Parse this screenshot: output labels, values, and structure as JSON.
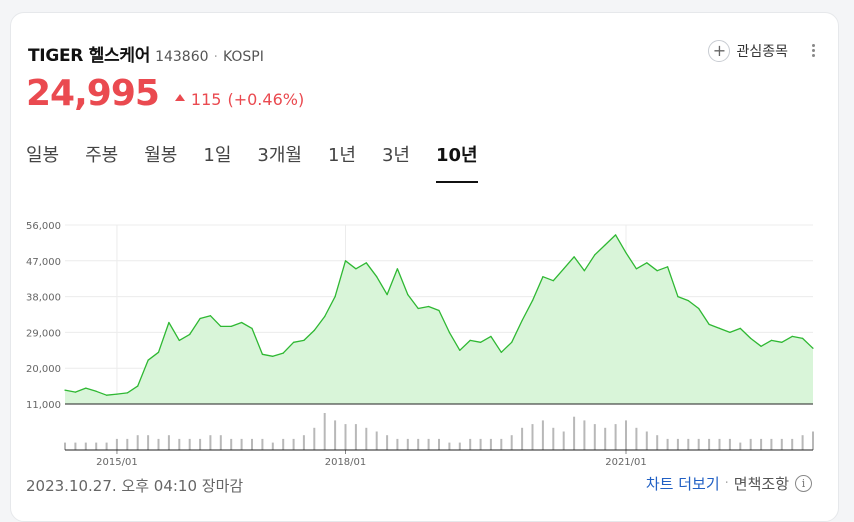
{
  "stock": {
    "name": "TIGER 헬스케어",
    "code": "143860",
    "separator": "·",
    "market": "KOSPI",
    "price": "24,995",
    "change": "115",
    "change_pct": "(+0.46%)",
    "watch_label": "관심종목",
    "colors": {
      "up": "#ea4a50",
      "line": "#2fb833",
      "area": "#d9f5d9"
    }
  },
  "tabs": [
    {
      "label": "일봉",
      "active": false
    },
    {
      "label": "주봉",
      "active": false
    },
    {
      "label": "월봉",
      "active": false
    },
    {
      "label": "1일",
      "active": false
    },
    {
      "label": "3개월",
      "active": false
    },
    {
      "label": "1년",
      "active": false
    },
    {
      "label": "3년",
      "active": false
    },
    {
      "label": "10년",
      "active": true
    }
  ],
  "footer": {
    "timestamp": "2023.10.27. 오후 04:10 장마감",
    "more_chart": "차트 더보기",
    "separator": "·",
    "disclaimer": "면책조항",
    "info_icon": "info-icon"
  },
  "chart_data": {
    "type": "area",
    "y_ticks": [
      56000,
      47000,
      38000,
      29000,
      20000,
      11000
    ],
    "y_tick_labels": [
      "56,000",
      "47,000",
      "38,000",
      "29,000",
      "20,000",
      "11,000"
    ],
    "ylim": [
      11000,
      56000
    ],
    "x_tick_labels": [
      "2015/01",
      "2018/01",
      "2021/01"
    ],
    "grid": true,
    "x": [
      "2013/11",
      "2014/01",
      "2014/04",
      "2014/07",
      "2014/10",
      "2015/01",
      "2015/03",
      "2015/05",
      "2015/07",
      "2015/08",
      "2015/09",
      "2015/10",
      "2015/12",
      "2016/02",
      "2016/04",
      "2016/05",
      "2016/07",
      "2016/09",
      "2016/11",
      "2017/01",
      "2017/03",
      "2017/05",
      "2017/07",
      "2017/09",
      "2017/10",
      "2017/11",
      "2017/12",
      "2018/01",
      "2018/02",
      "2018/04",
      "2018/05",
      "2018/06",
      "2018/07",
      "2018/08",
      "2018/09",
      "2018/10",
      "2018/12",
      "2019/03",
      "2019/05",
      "2019/07",
      "2019/08",
      "2019/10",
      "2020/01",
      "2020/02",
      "2020/03",
      "2020/04",
      "2020/05",
      "2020/06",
      "2020/07",
      "2020/08",
      "2020/09",
      "2020/10",
      "2020/11",
      "2020/12",
      "2021/01",
      "2021/02",
      "2021/03",
      "2021/05",
      "2021/07",
      "2021/09",
      "2021/10",
      "2021/12",
      "2022/02",
      "2022/04",
      "2022/06",
      "2022/08",
      "2022/10",
      "2022/12",
      "2023/02",
      "2023/04",
      "2023/06",
      "2023/08",
      "2023/10"
    ],
    "values": [
      14500,
      14000,
      15000,
      14200,
      13200,
      13500,
      13800,
      15500,
      22000,
      24000,
      31500,
      27000,
      28500,
      32500,
      33200,
      30500,
      30500,
      31500,
      30000,
      23500,
      23000,
      23800,
      26500,
      27000,
      29500,
      33000,
      38000,
      47000,
      45000,
      46500,
      43000,
      38500,
      45000,
      38500,
      35000,
      35500,
      34500,
      29000,
      24500,
      27000,
      26500,
      28000,
      24000,
      26500,
      32000,
      37000,
      43000,
      42000,
      45000,
      48000,
      44500,
      48500,
      51000,
      53500,
      49000,
      45000,
      46500,
      44500,
      45500,
      38000,
      37000,
      35000,
      31000,
      30000,
      29000,
      30000,
      27500,
      25500,
      27000,
      26500,
      28000,
      27500,
      25000
    ],
    "volume": [
      2,
      2,
      2,
      2,
      2,
      3,
      3,
      4,
      4,
      3,
      4,
      3,
      3,
      3,
      4,
      4,
      3,
      3,
      3,
      3,
      2,
      3,
      3,
      4,
      6,
      10,
      8,
      7,
      7,
      6,
      5,
      4,
      3,
      3,
      3,
      3,
      3,
      2,
      2,
      3,
      3,
      3,
      3,
      4,
      6,
      7,
      8,
      6,
      5,
      9,
      8,
      7,
      6,
      7,
      8,
      6,
      5,
      4,
      3,
      3,
      3,
      3,
      3,
      3,
      3,
      2,
      3,
      3,
      3,
      3,
      3,
      4,
      5
    ]
  }
}
